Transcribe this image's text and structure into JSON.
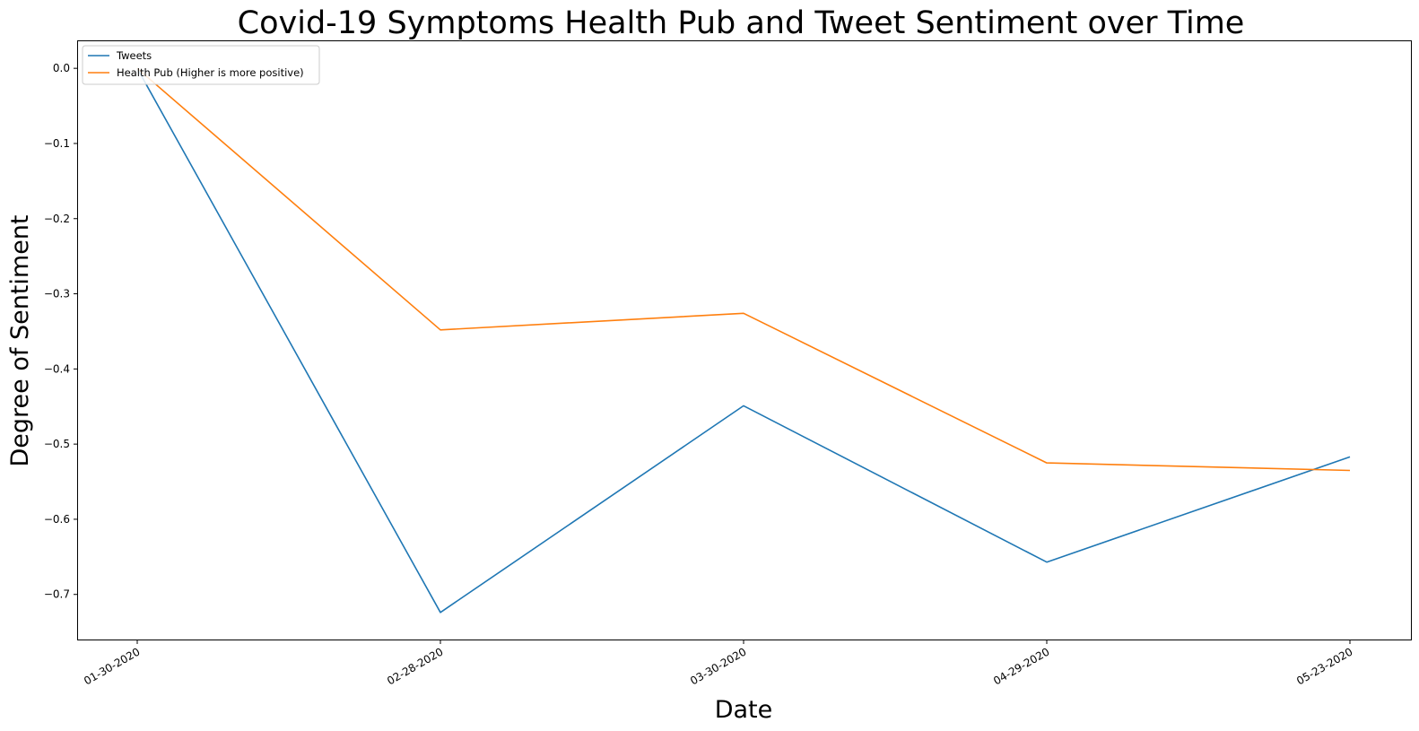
{
  "chart_data": {
    "type": "line",
    "title": "Covid-19 Symptoms Health Pub and Tweet Sentiment over Time",
    "xlabel": "Date",
    "ylabel": "Degree of Sentiment",
    "categories": [
      "01-30-2020",
      "02-28-2020",
      "03-30-2020",
      "04-29-2020",
      "05-23-2020"
    ],
    "series": [
      {
        "name": "Tweets",
        "color": "#1f77b4",
        "values": [
          0.0,
          -0.724,
          -0.449,
          -0.657,
          -0.517
        ]
      },
      {
        "name": "Health Pub (Higher is more positive)",
        "color": "#ff7f0e",
        "values": [
          0.0,
          -0.348,
          -0.326,
          -0.525,
          -0.535
        ]
      }
    ],
    "ylim": [
      -0.76,
      0.036
    ],
    "yticks": [
      0.0,
      -0.1,
      -0.2,
      -0.3,
      -0.4,
      -0.5,
      -0.6,
      -0.7
    ],
    "ytick_labels": [
      "0.0",
      "−0.1",
      "−0.2",
      "−0.3",
      "−0.4",
      "−0.5",
      "−0.6",
      "−0.7"
    ],
    "grid": false,
    "legend_position": "top-left"
  }
}
